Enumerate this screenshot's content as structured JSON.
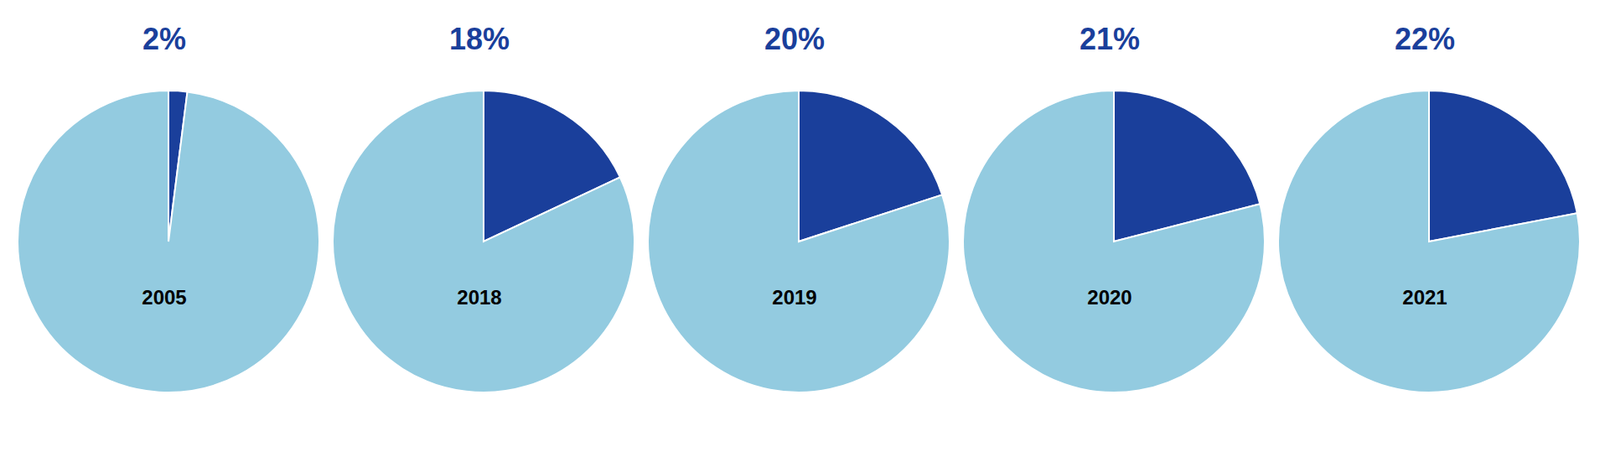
{
  "chart_data": [
    {
      "type": "pie",
      "annotations": [
        "2005"
      ],
      "values": [
        2,
        98
      ],
      "value_labels": [
        "2%",
        null
      ],
      "colors": [
        "#1A3F9B",
        "#93CBE0"
      ]
    },
    {
      "type": "pie",
      "annotations": [
        "2018"
      ],
      "values": [
        18,
        82
      ],
      "value_labels": [
        "18%",
        null
      ],
      "colors": [
        "#1A3F9B",
        "#93CBE0"
      ]
    },
    {
      "type": "pie",
      "annotations": [
        "2019"
      ],
      "values": [
        20,
        80
      ],
      "value_labels": [
        "20%",
        null
      ],
      "colors": [
        "#1A3F9B",
        "#93CBE0"
      ]
    },
    {
      "type": "pie",
      "annotations": [
        "2020"
      ],
      "values": [
        21,
        79
      ],
      "value_labels": [
        "21%",
        null
      ],
      "colors": [
        "#1A3F9B",
        "#93CBE0"
      ]
    },
    {
      "type": "pie",
      "annotations": [
        "2021"
      ],
      "values": [
        22,
        78
      ],
      "value_labels": [
        "22%",
        null
      ],
      "colors": [
        "#1A3F9B",
        "#93CBE0"
      ]
    }
  ]
}
